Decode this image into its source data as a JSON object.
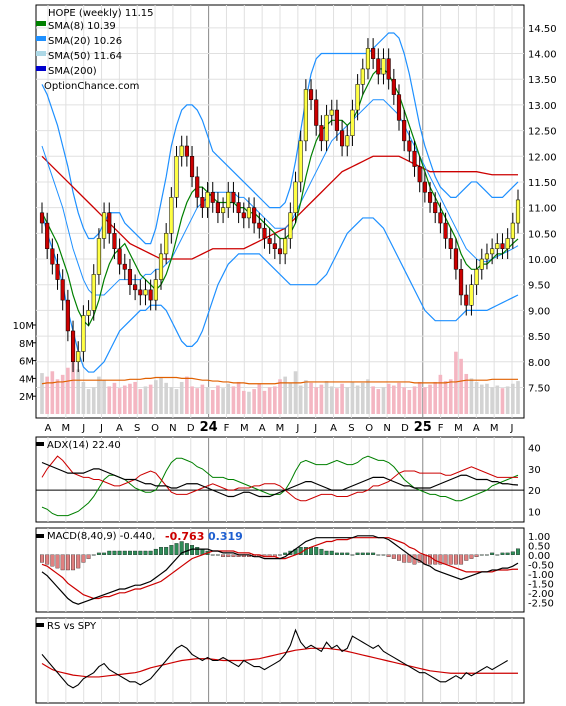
{
  "chart_data": {
    "type": "line",
    "title": "HOPE (weekly) 11.15",
    "watermark": "OptionChance.com",
    "legend": [
      {
        "label": "SMA(8) 10.39",
        "color": "#008000"
      },
      {
        "label": "SMA(20) 10.26",
        "color": "#1e90ff"
      },
      {
        "label": "SMA(50) 11.64",
        "color": "#add8e6"
      },
      {
        "label": "SMA(200)",
        "color": "#0000cd"
      }
    ],
    "colors": {
      "up": "#ffff44",
      "down": "#cc0000",
      "sma8": "#008000",
      "sma20": "#1e90ff",
      "sma50_red": "#cc0000",
      "bb_upper": "#1e90ff",
      "bb_yellow": "#e6e600",
      "vol_up": "#d3d3d3",
      "vol_down": "#f4b6c2",
      "vol_avg": "#e06000",
      "adx": "#000000",
      "plus_di": "#008000",
      "minus_di": "#cc0000",
      "macd": "#000000",
      "signal": "#cc0000",
      "hist_pos": "#2e8b57",
      "hist_neg": "#e08080"
    },
    "price_yticks": [
      "14.50",
      "14.00",
      "13.50",
      "13.00",
      "12.50",
      "12.00",
      "11.50",
      "11.00",
      "10.50",
      "10.00",
      "9.50",
      "9.00",
      "8.50",
      "8.00",
      "7.50"
    ],
    "price_ylim": [
      7.1,
      14.75
    ],
    "volume_yticks": [
      "10M",
      "8M",
      "6M",
      "4M",
      "2M"
    ],
    "x_labels": [
      "A",
      "M",
      "J",
      "J",
      "A",
      "S",
      "O",
      "N",
      "D",
      "24",
      "F",
      "M",
      "A",
      "M",
      "J",
      "J",
      "A",
      "S",
      "O",
      "N",
      "D",
      "25",
      "F",
      "M",
      "A",
      "M",
      "J"
    ],
    "adx_panel": {
      "label": "ADX(14) 22.40",
      "yticks": [
        "40",
        "30",
        "20",
        "10"
      ],
      "ylim": [
        5,
        45
      ]
    },
    "macd_panel": {
      "label": "MACD(8,40,9) -0.440,",
      "label_red": "-0.763",
      "label_blue": "0.319",
      "yticks": [
        "1.00",
        "0.50",
        "0.00",
        "-0.50",
        "-1.00",
        "-1.50",
        "-2.00",
        "-2.50"
      ],
      "ylim": [
        -2.8,
        1.2
      ]
    },
    "rs_panel": {
      "label": "RS vs SPY"
    },
    "close": [
      10.7,
      10.2,
      9.9,
      9.6,
      9.2,
      8.6,
      8.0,
      8.2,
      8.9,
      9.0,
      9.7,
      10.4,
      10.9,
      10.5,
      10.2,
      9.9,
      9.8,
      9.5,
      9.4,
      9.3,
      9.4,
      9.2,
      9.6,
      10.1,
      10.5,
      11.2,
      12.0,
      12.2,
      12.0,
      11.6,
      11.2,
      11.0,
      11.3,
      11.1,
      10.9,
      11.0,
      11.3,
      11.1,
      10.9,
      10.8,
      11.0,
      10.7,
      10.6,
      10.4,
      10.3,
      10.2,
      10.1,
      10.4,
      10.9,
      11.5,
      12.3,
      13.3,
      13.1,
      12.6,
      12.3,
      12.8,
      12.9,
      12.5,
      12.2,
      12.4,
      12.9,
      13.4,
      13.7,
      14.1,
      13.9,
      13.6,
      13.9,
      13.5,
      13.2,
      12.7,
      12.3,
      12.1,
      11.8,
      11.5,
      11.3,
      11.1,
      10.9,
      10.7,
      10.4,
      10.2,
      9.8,
      9.3,
      9.1,
      9.5,
      9.8,
      10.0,
      10.1,
      10.2,
      10.3,
      10.2,
      10.4,
      10.7,
      11.15
    ],
    "sma8": [
      10.9,
      10.7,
      10.5,
      10.3,
      10.0,
      9.7,
      9.3,
      9.0,
      8.8,
      8.7,
      8.9,
      9.2,
      9.6,
      9.9,
      10.1,
      10.2,
      10.3,
      10.1,
      9.9,
      9.7,
      9.6,
      9.5,
      9.4,
      9.5,
      9.7,
      10.0,
      10.4,
      10.8,
      11.1,
      11.3,
      11.4,
      11.4,
      11.3,
      11.2,
      11.1,
      11.1,
      11.1,
      11.1,
      11.0,
      11.0,
      10.9,
      10.9,
      10.8,
      10.7,
      10.6,
      10.5,
      10.4,
      10.4,
      10.5,
      10.7,
      11.1,
      11.6,
      12.0,
      12.3,
      12.5,
      12.6,
      12.7,
      12.7,
      12.7,
      12.6,
      12.7,
      12.9,
      13.2,
      13.4,
      13.6,
      13.7,
      13.7,
      13.6,
      13.4,
      13.2,
      12.9,
      12.6,
      12.3,
      12.0,
      11.7,
      11.4,
      11.2,
      11.0,
      10.8,
      10.6,
      10.4,
      10.1,
      9.9,
      9.8,
      9.8,
      9.9,
      9.9,
      10.0,
      10.1,
      10.1,
      10.2,
      10.3,
      10.39
    ],
    "sma20": [
      12.2,
      11.9,
      11.6,
      11.3,
      11.0,
      10.6,
      10.2,
      9.9,
      9.6,
      9.4,
      9.3,
      9.3,
      9.3,
      9.4,
      9.5,
      9.6,
      9.6,
      9.6,
      9.6,
      9.6,
      9.7,
      9.7,
      9.8,
      9.8,
      9.9,
      10.0,
      10.2,
      10.4,
      10.6,
      10.8,
      11.0,
      11.1,
      11.2,
      11.3,
      11.3,
      11.3,
      11.3,
      11.3,
      11.2,
      11.2,
      11.1,
      11.0,
      10.9,
      10.8,
      10.7,
      10.6,
      10.6,
      10.6,
      10.7,
      10.9,
      11.1,
      11.3,
      11.5,
      11.7,
      11.9,
      12.1,
      12.3,
      12.4,
      12.5,
      12.6,
      12.7,
      12.8,
      12.9,
      13.0,
      13.1,
      13.1,
      13.1,
      13.0,
      12.9,
      12.8,
      12.6,
      12.4,
      12.2,
      12.0,
      11.8,
      11.6,
      11.4,
      11.2,
      11.0,
      10.8,
      10.6,
      10.4,
      10.2,
      10.1,
      10.0,
      9.95,
      9.95,
      10.0,
      10.05,
      10.1,
      10.15,
      10.2,
      10.26
    ],
    "sma50": [
      12.0,
      11.9,
      11.8,
      11.7,
      11.6,
      11.5,
      11.4,
      11.3,
      11.2,
      11.1,
      11.0,
      10.9,
      10.8,
      10.7,
      10.6,
      10.5,
      10.4,
      10.3,
      10.25,
      10.2,
      10.15,
      10.1,
      10.05,
      10.0,
      10.0,
      10.0,
      10.0,
      10.0,
      10.0,
      10.0,
      10.05,
      10.1,
      10.15,
      10.2,
      10.2,
      10.2,
      10.2,
      10.2,
      10.2,
      10.2,
      10.25,
      10.3,
      10.35,
      10.4,
      10.45,
      10.5,
      10.55,
      10.6,
      10.7,
      10.8,
      10.9,
      11.0,
      11.1,
      11.2,
      11.3,
      11.4,
      11.5,
      11.6,
      11.7,
      11.75,
      11.8,
      11.85,
      11.9,
      11.95,
      12.0,
      12.0,
      12.0,
      12.0,
      12.0,
      12.0,
      11.95,
      11.9,
      11.85,
      11.8,
      11.75,
      11.7,
      11.7,
      11.7,
      11.7,
      11.7,
      11.7,
      11.7,
      11.7,
      11.7,
      11.7,
      11.68,
      11.66,
      11.64,
      11.64,
      11.64,
      11.64,
      11.64,
      11.64
    ],
    "bb_upper": [
      13.4,
      13.2,
      12.9,
      12.6,
      12.2,
      11.8,
      11.3,
      10.9,
      10.6,
      10.4,
      10.4,
      10.5,
      10.7,
      10.9,
      10.9,
      10.9,
      10.7,
      10.6,
      10.5,
      10.4,
      10.3,
      10.3,
      10.6,
      11.1,
      11.6,
      12.2,
      12.6,
      12.9,
      13.0,
      13.0,
      12.9,
      12.7,
      12.4,
      12.1,
      12.0,
      11.9,
      11.8,
      11.7,
      11.6,
      11.5,
      11.4,
      11.3,
      11.2,
      11.1,
      11.0,
      11.0,
      11.0,
      11.1,
      11.4,
      11.9,
      12.5,
      13.1,
      13.6,
      13.9,
      14.0,
      14.0,
      14.0,
      14.0,
      14.0,
      14.0,
      14.0,
      14.0,
      14.0,
      14.0,
      14.1,
      14.2,
      14.3,
      14.4,
      14.4,
      14.3,
      14.0,
      13.6,
      13.1,
      12.6,
      12.2,
      11.9,
      11.6,
      11.4,
      11.3,
      11.2,
      11.2,
      11.3,
      11.4,
      11.5,
      11.5,
      11.4,
      11.3,
      11.2,
      11.2,
      11.2,
      11.3,
      11.4,
      11.5
    ],
    "bb_lower": [
      10.9,
      10.5,
      10.2,
      9.9,
      9.5,
      9.0,
      8.6,
      8.2,
      7.9,
      7.8,
      7.8,
      7.9,
      8.0,
      8.2,
      8.4,
      8.6,
      8.7,
      8.8,
      8.9,
      9.0,
      9.0,
      9.1,
      9.1,
      9.1,
      9.0,
      8.8,
      8.6,
      8.4,
      8.3,
      8.3,
      8.4,
      8.6,
      8.9,
      9.2,
      9.5,
      9.7,
      9.9,
      10.0,
      10.1,
      10.1,
      10.1,
      10.1,
      10.1,
      10.0,
      9.9,
      9.8,
      9.7,
      9.6,
      9.5,
      9.5,
      9.5,
      9.5,
      9.5,
      9.5,
      9.6,
      9.7,
      9.9,
      10.1,
      10.3,
      10.5,
      10.6,
      10.7,
      10.8,
      10.8,
      10.8,
      10.7,
      10.6,
      10.4,
      10.2,
      10.0,
      9.8,
      9.6,
      9.4,
      9.2,
      9.0,
      8.9,
      8.8,
      8.8,
      8.8,
      8.8,
      8.8,
      8.9,
      9.0,
      9.0,
      9.0,
      9.0,
      9.0,
      9.05,
      9.1,
      9.15,
      9.2,
      9.25,
      9.3
    ],
    "volume": [
      4.6,
      4.2,
      4.8,
      3.9,
      4.4,
      5.2,
      7.1,
      5.0,
      3.6,
      2.8,
      3.0,
      4.2,
      3.8,
      3.1,
      3.5,
      2.9,
      3.2,
      3.4,
      3.6,
      2.8,
      3.1,
      3.3,
      3.8,
      4.1,
      3.5,
      3.0,
      2.8,
      3.6,
      4.2,
      3.1,
      2.9,
      3.3,
      3.0,
      2.7,
      3.2,
      2.9,
      3.4,
      3.1,
      3.6,
      2.6,
      2.5,
      2.8,
      3.4,
      2.6,
      3.0,
      3.1,
      3.9,
      4.2,
      3.5,
      4.8,
      3.2,
      3.8,
      3.5,
      3.0,
      3.3,
      3.7,
      3.1,
      2.9,
      3.4,
      3.0,
      3.6,
      3.2,
      3.5,
      3.9,
      3.1,
      2.8,
      3.0,
      3.4,
      3.2,
      3.5,
      3.0,
      2.7,
      3.1,
      3.6,
      3.0,
      3.3,
      3.6,
      4.4,
      3.7,
      3.9,
      7.0,
      6.2,
      4.5,
      4.0,
      3.6,
      3.3,
      3.4,
      3.0,
      3.2,
      2.9,
      3.1,
      3.4,
      3.7
    ],
    "vol_avg": [
      3.4,
      3.5,
      3.5,
      3.6,
      3.6,
      3.7,
      3.8,
      3.8,
      3.8,
      3.8,
      3.8,
      3.8,
      3.8,
      3.8,
      3.8,
      3.8,
      3.8,
      3.9,
      3.9,
      3.9,
      4.0,
      4.0,
      4.1,
      4.1,
      4.1,
      4.1,
      4.1,
      4.0,
      4.0,
      4.0,
      3.9,
      3.8,
      3.8,
      3.7,
      3.7,
      3.6,
      3.6,
      3.5,
      3.5,
      3.5,
      3.4,
      3.4,
      3.4,
      3.4,
      3.4,
      3.4,
      3.5,
      3.5,
      3.5,
      3.5,
      3.5,
      3.6,
      3.6,
      3.6,
      3.6,
      3.6,
      3.6,
      3.6,
      3.6,
      3.6,
      3.6,
      3.6,
      3.6,
      3.6,
      3.6,
      3.6,
      3.6,
      3.6,
      3.6,
      3.6,
      3.6,
      3.6,
      3.5,
      3.5,
      3.5,
      3.5,
      3.5,
      3.5,
      3.5,
      3.6,
      3.6,
      3.7,
      3.8,
      3.8,
      3.8,
      3.8,
      3.8,
      3.9,
      3.9,
      3.9,
      3.9,
      3.9,
      3.9
    ],
    "adx": [
      33,
      32,
      31,
      30,
      29,
      28,
      28,
      28,
      28,
      29,
      30,
      30,
      29,
      28,
      27,
      26,
      25,
      25,
      25,
      24,
      23,
      23,
      22,
      22,
      22,
      21,
      21,
      22,
      23,
      23,
      23,
      22,
      21,
      20,
      19,
      18,
      17,
      17,
      18,
      19,
      19,
      18,
      17,
      17,
      17,
      18,
      19,
      20,
      21,
      22,
      23,
      24,
      24,
      23,
      22,
      21,
      20,
      20,
      20,
      21,
      22,
      23,
      24,
      25,
      26,
      26,
      26,
      25,
      24,
      23,
      22,
      22,
      21,
      21,
      21,
      21,
      22,
      23,
      24,
      25,
      26,
      27,
      27,
      26,
      25,
      25,
      25,
      24,
      24,
      23,
      23,
      22.6,
      22.4
    ],
    "plus_di": [
      12,
      11,
      9,
      8,
      8,
      8,
      9,
      10,
      12,
      14,
      17,
      21,
      25,
      27,
      27,
      26,
      25,
      23,
      21,
      20,
      19,
      19,
      20,
      24,
      29,
      33,
      35,
      35,
      34,
      33,
      31,
      30,
      28,
      26,
      26,
      26,
      25,
      25,
      24,
      23,
      22,
      21,
      20,
      19,
      18,
      18,
      18,
      20,
      24,
      29,
      33,
      34,
      33,
      32,
      32,
      32,
      33,
      34,
      33,
      32,
      32,
      33,
      35,
      36,
      35,
      34,
      34,
      33,
      31,
      28,
      25,
      23,
      21,
      20,
      19,
      18,
      18,
      17,
      17,
      16,
      15,
      15,
      16,
      17,
      18,
      19,
      20,
      22,
      23,
      24,
      25,
      26,
      27
    ],
    "minus_di": [
      26,
      30,
      33,
      36,
      34,
      31,
      28,
      27,
      26,
      26,
      25,
      25,
      24,
      23,
      22,
      22,
      23,
      24,
      25,
      27,
      28,
      29,
      28,
      25,
      22,
      19,
      18,
      18,
      18,
      19,
      20,
      21,
      22,
      23,
      22,
      21,
      20,
      20,
      21,
      21,
      21,
      22,
      22,
      23,
      23,
      23,
      22,
      20,
      18,
      16,
      15,
      15,
      16,
      17,
      18,
      18,
      18,
      17,
      17,
      17,
      18,
      19,
      19,
      20,
      22,
      22,
      23,
      24,
      26,
      28,
      29,
      29,
      29,
      28,
      28,
      28,
      28,
      28,
      27,
      27,
      28,
      29,
      30,
      31,
      30,
      29,
      28,
      27,
      26,
      26,
      26,
      26,
      26
    ],
    "macd": [
      -0.9,
      -1.1,
      -1.4,
      -1.7,
      -2.0,
      -2.3,
      -2.5,
      -2.6,
      -2.5,
      -2.4,
      -2.3,
      -2.2,
      -2.1,
      -2.0,
      -1.9,
      -1.8,
      -1.8,
      -1.7,
      -1.6,
      -1.6,
      -1.5,
      -1.4,
      -1.2,
      -1.0,
      -0.8,
      -0.5,
      -0.2,
      0.1,
      0.2,
      0.3,
      0.3,
      0.3,
      0.3,
      0.2,
      0.2,
      0.1,
      0.1,
      0.1,
      0.0,
      0.0,
      0.0,
      -0.1,
      -0.1,
      -0.2,
      -0.2,
      -0.2,
      -0.2,
      -0.1,
      0.1,
      0.3,
      0.5,
      0.7,
      0.8,
      0.9,
      0.9,
      0.9,
      0.9,
      0.9,
      0.9,
      0.9,
      0.9,
      1.0,
      1.0,
      1.0,
      1.0,
      0.9,
      0.9,
      0.8,
      0.6,
      0.4,
      0.2,
      0.0,
      -0.2,
      -0.3,
      -0.5,
      -0.6,
      -0.8,
      -0.9,
      -1.0,
      -1.1,
      -1.2,
      -1.3,
      -1.2,
      -1.1,
      -1.0,
      -0.9,
      -0.9,
      -0.8,
      -0.8,
      -0.7,
      -0.7,
      -0.6,
      -0.44
    ],
    "signal": [
      -0.5,
      -0.6,
      -0.8,
      -1.0,
      -1.2,
      -1.5,
      -1.7,
      -1.9,
      -2.1,
      -2.2,
      -2.3,
      -2.3,
      -2.2,
      -2.2,
      -2.1,
      -2.0,
      -2.0,
      -1.9,
      -1.8,
      -1.8,
      -1.7,
      -1.6,
      -1.5,
      -1.4,
      -1.2,
      -1.0,
      -0.8,
      -0.6,
      -0.4,
      -0.2,
      -0.1,
      0.0,
      0.1,
      0.2,
      0.2,
      0.2,
      0.2,
      0.2,
      0.1,
      0.1,
      0.1,
      0.0,
      0.0,
      -0.1,
      -0.1,
      -0.1,
      -0.2,
      -0.2,
      -0.1,
      0.0,
      0.1,
      0.3,
      0.4,
      0.5,
      0.6,
      0.7,
      0.7,
      0.8,
      0.8,
      0.8,
      0.9,
      0.9,
      0.9,
      0.9,
      0.9,
      0.9,
      0.9,
      0.9,
      0.8,
      0.7,
      0.6,
      0.4,
      0.3,
      0.1,
      0.0,
      -0.1,
      -0.3,
      -0.4,
      -0.5,
      -0.6,
      -0.7,
      -0.8,
      -0.9,
      -0.9,
      -0.9,
      -0.9,
      -0.9,
      -0.9,
      -0.8,
      -0.8,
      -0.8,
      -0.76,
      -0.76
    ],
    "rs": [
      1.4,
      1.3,
      1.2,
      1.1,
      1.0,
      0.9,
      0.85,
      0.9,
      1.0,
      1.05,
      1.1,
      1.2,
      1.25,
      1.15,
      1.1,
      1.05,
      1.0,
      0.95,
      0.95,
      0.9,
      0.95,
      1.0,
      1.1,
      1.2,
      1.3,
      1.4,
      1.5,
      1.55,
      1.5,
      1.4,
      1.35,
      1.3,
      1.35,
      1.3,
      1.3,
      1.35,
      1.3,
      1.25,
      1.2,
      1.3,
      1.25,
      1.2,
      1.2,
      1.15,
      1.2,
      1.25,
      1.3,
      1.4,
      1.55,
      1.8,
      1.6,
      1.5,
      1.55,
      1.5,
      1.45,
      1.6,
      1.5,
      1.55,
      1.45,
      1.5,
      1.7,
      1.65,
      1.6,
      1.55,
      1.5,
      1.55,
      1.45,
      1.4,
      1.35,
      1.3,
      1.25,
      1.2,
      1.15,
      1.1,
      1.1,
      1.05,
      1.0,
      0.95,
      0.95,
      1.0,
      1.05,
      1.0,
      1.1,
      1.05,
      1.1,
      1.15,
      1.2,
      1.15,
      1.2,
      1.25,
      1.3
    ],
    "rs_avg": [
      1.25,
      1.2,
      1.15,
      1.12,
      1.1,
      1.08,
      1.06,
      1.05,
      1.04,
      1.03,
      1.03,
      1.03,
      1.04,
      1.05,
      1.06,
      1.07,
      1.08,
      1.09,
      1.1,
      1.12,
      1.15,
      1.18,
      1.2,
      1.22,
      1.24,
      1.26,
      1.28,
      1.3,
      1.31,
      1.32,
      1.33,
      1.33,
      1.33,
      1.32,
      1.31,
      1.3,
      1.3,
      1.3,
      1.3,
      1.3,
      1.31,
      1.32,
      1.33,
      1.35,
      1.37,
      1.39,
      1.41,
      1.43,
      1.45,
      1.47,
      1.48,
      1.49,
      1.5,
      1.5,
      1.5,
      1.5,
      1.49,
      1.48,
      1.47,
      1.45,
      1.43,
      1.41,
      1.39,
      1.37,
      1.35,
      1.33,
      1.31,
      1.29,
      1.27,
      1.25,
      1.23,
      1.21,
      1.19,
      1.17,
      1.15,
      1.13,
      1.12,
      1.11,
      1.1,
      1.09,
      1.09,
      1.09,
      1.09,
      1.09,
      1.09,
      1.09,
      1.09,
      1.09,
      1.09,
      1.09,
      1.09,
      1.09,
      1.09
    ]
  }
}
